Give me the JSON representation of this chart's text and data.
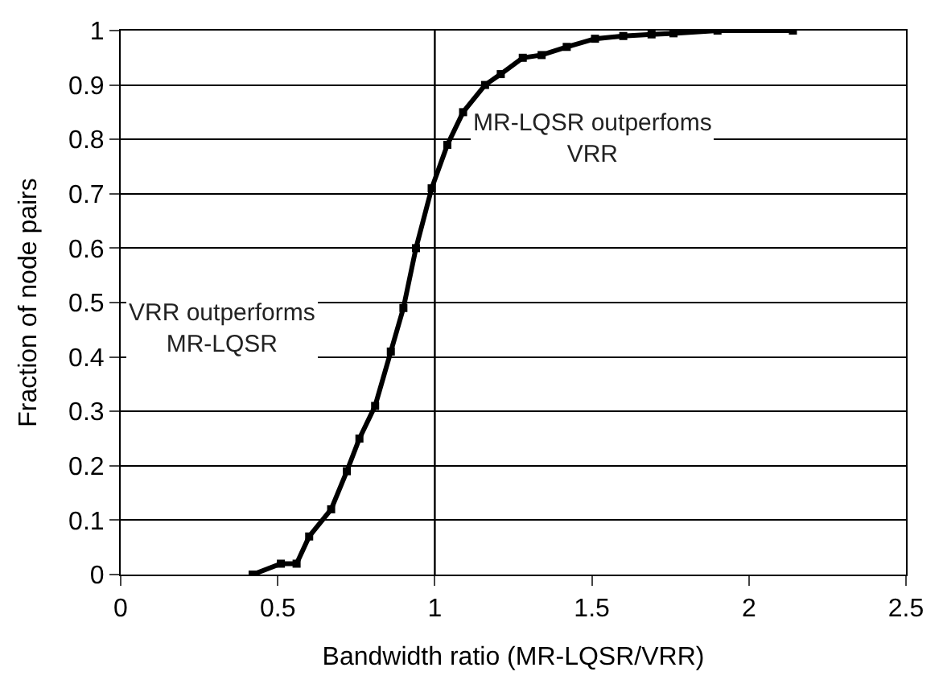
{
  "chart_data": {
    "type": "line",
    "xlabel": "Bandwidth ratio (MR-LQSR/VRR)",
    "ylabel": "Fraction of node pairs",
    "x": [
      0.42,
      0.51,
      0.56,
      0.6,
      0.67,
      0.72,
      0.76,
      0.81,
      0.86,
      0.9,
      0.94,
      0.99,
      1.04,
      1.09,
      1.16,
      1.21,
      1.28,
      1.34,
      1.42,
      1.51,
      1.6,
      1.69,
      1.76,
      1.9,
      2.14
    ],
    "series": [
      {
        "color": "#000000",
        "values": [
          0,
          0.02,
          0.02,
          0.07,
          0.12,
          0.19,
          0.25,
          0.31,
          0.41,
          0.49,
          0.6,
          0.71,
          0.79,
          0.85,
          0.9,
          0.92,
          0.95,
          0.955,
          0.97,
          0.985,
          0.99,
          0.993,
          0.995,
          1.0,
          1.0
        ]
      }
    ],
    "xlim": [
      0,
      2.5
    ],
    "xticks": [
      0,
      0.5,
      1,
      1.5,
      2,
      2.5
    ],
    "ylim": [
      0,
      1
    ],
    "yticks": [
      0,
      0.1,
      0.2,
      0.3,
      0.4,
      0.5,
      0.6,
      0.7,
      0.8,
      0.9,
      1
    ],
    "ref_lines": [
      {
        "axis": "x",
        "value": 1,
        "color": "#000000"
      }
    ],
    "annotations": [
      "MR-LQSR outperfoms\nVRR",
      "VRR outperforms\nMR-LQSR"
    ],
    "grid": "y",
    "marker": "square",
    "line_style": "solid"
  }
}
